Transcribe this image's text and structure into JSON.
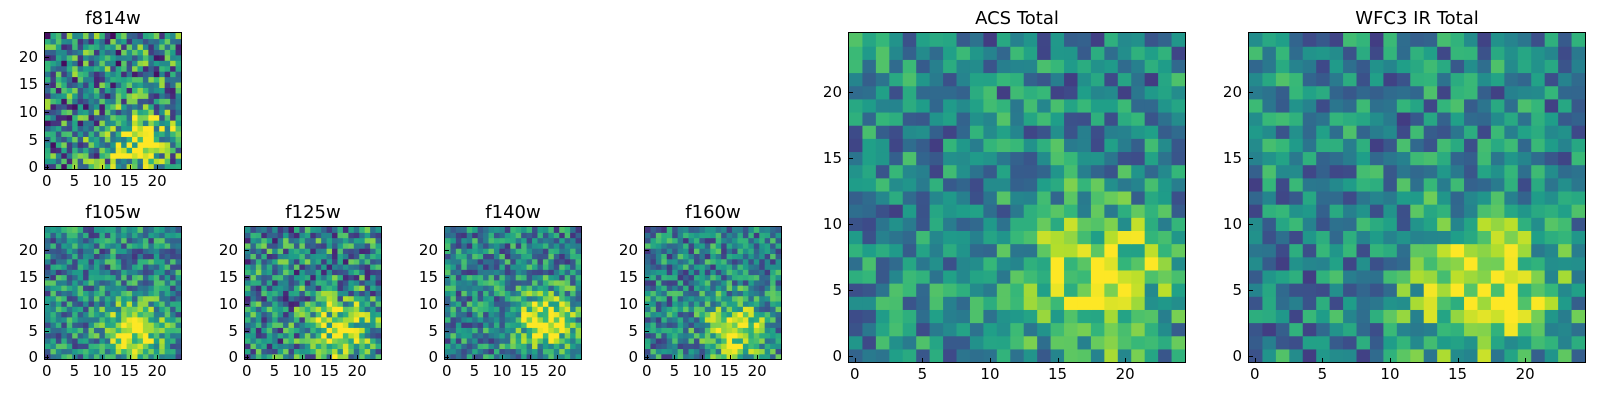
{
  "chart_data": [
    {
      "id": "p814",
      "type": "heatmap",
      "title": "f814w",
      "xlim": [
        0,
        25
      ],
      "ylim": [
        0,
        25
      ],
      "xticks": [
        0,
        5,
        10,
        15,
        20
      ],
      "yticks": [
        0,
        5,
        10,
        15,
        20
      ],
      "colormap": "viridis",
      "grid": [
        25,
        25
      ],
      "peak": [
        17,
        5
      ],
      "noise": 0.85,
      "seed": 11
    },
    {
      "id": "p105",
      "type": "heatmap",
      "title": "f105w",
      "xlim": [
        0,
        25
      ],
      "ylim": [
        0,
        25
      ],
      "xticks": [
        0,
        5,
        10,
        15,
        20
      ],
      "yticks": [
        0,
        5,
        10,
        15,
        20
      ],
      "colormap": "viridis",
      "grid": [
        25,
        25
      ],
      "peak": [
        16,
        5
      ],
      "noise": 0.6,
      "seed": 23
    },
    {
      "id": "p125",
      "type": "heatmap",
      "title": "f125w",
      "xlim": [
        0,
        25
      ],
      "ylim": [
        0,
        25
      ],
      "xticks": [
        0,
        5,
        10,
        15,
        20
      ],
      "yticks": [
        0,
        5,
        10,
        15,
        20
      ],
      "colormap": "viridis",
      "grid": [
        25,
        25
      ],
      "peak": [
        17,
        5
      ],
      "noise": 0.75,
      "seed": 37
    },
    {
      "id": "p140",
      "type": "heatmap",
      "title": "f140w",
      "xlim": [
        0,
        25
      ],
      "ylim": [
        0,
        25
      ],
      "xticks": [
        0,
        5,
        10,
        15,
        20
      ],
      "yticks": [
        0,
        5,
        10,
        15,
        20
      ],
      "colormap": "viridis",
      "grid": [
        25,
        25
      ],
      "peak": [
        18,
        7
      ],
      "noise": 0.6,
      "seed": 41
    },
    {
      "id": "p160",
      "type": "heatmap",
      "title": "f160w",
      "xlim": [
        0,
        25
      ],
      "ylim": [
        0,
        25
      ],
      "xticks": [
        0,
        5,
        10,
        15,
        20
      ],
      "yticks": [
        0,
        5,
        10,
        15,
        20
      ],
      "colormap": "viridis",
      "grid": [
        25,
        25
      ],
      "peak": [
        16,
        5
      ],
      "noise": 0.6,
      "seed": 53
    },
    {
      "id": "pacs",
      "type": "heatmap",
      "title": "ACS Total",
      "xlim": [
        0,
        25
      ],
      "ylim": [
        0,
        25
      ],
      "xticks": [
        0,
        5,
        10,
        15,
        20
      ],
      "yticks": [
        0,
        5,
        10,
        15,
        20
      ],
      "colormap": "viridis",
      "grid": [
        25,
        25
      ],
      "peak": [
        18,
        6
      ],
      "noise": 0.55,
      "seed": 67
    },
    {
      "id": "pwfc",
      "type": "heatmap",
      "title": "WFC3 IR Total",
      "xlim": [
        0,
        25
      ],
      "ylim": [
        0,
        25
      ],
      "xticks": [
        0,
        5,
        10,
        15,
        20
      ],
      "yticks": [
        0,
        5,
        10,
        15,
        20
      ],
      "colormap": "viridis",
      "grid": [
        25,
        25
      ],
      "peak": [
        17,
        5
      ],
      "noise": 0.55,
      "seed": 79
    }
  ]
}
